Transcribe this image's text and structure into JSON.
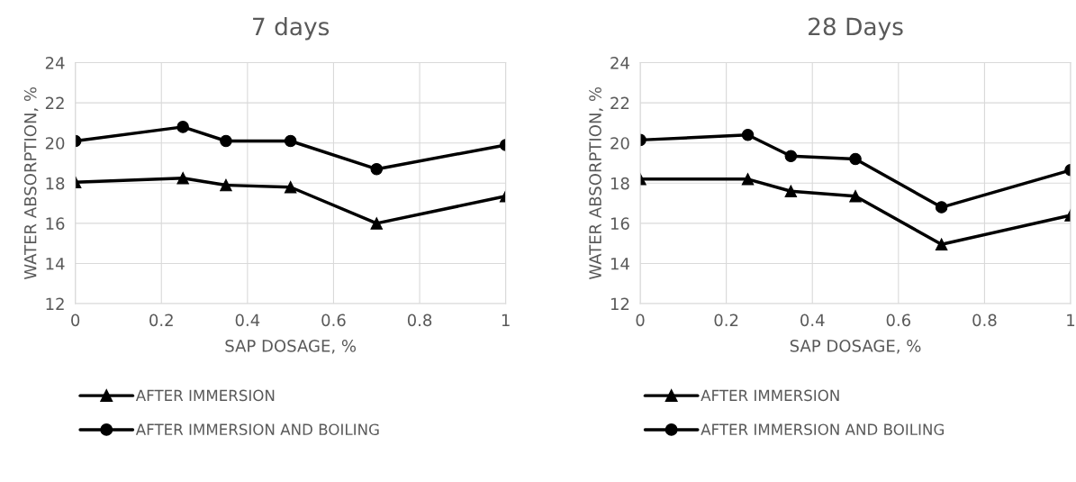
{
  "chart_data": [
    {
      "type": "line",
      "title": "7 days",
      "xlabel": "SAP DOSAGE, %",
      "ylabel": "WATER ABSORPTION, %",
      "x": [
        0,
        0.25,
        0.35,
        0.5,
        0.7,
        1
      ],
      "series": [
        {
          "name": "AFTER IMMERSION",
          "color": "#000000",
          "marker": "triangle",
          "values": [
            18.05,
            18.25,
            17.9,
            17.8,
            16.0,
            17.35
          ]
        },
        {
          "name": "AFTER IMMERSION AND BOILING",
          "color": "#000000",
          "marker": "circle",
          "values": [
            20.1,
            20.8,
            20.1,
            20.1,
            18.7,
            19.9
          ]
        }
      ],
      "xlim": [
        0,
        1
      ],
      "xticks": [
        0,
        0.2,
        0.4,
        0.6,
        0.8,
        1
      ],
      "ylim": [
        12,
        24
      ],
      "yticks": [
        12,
        14,
        16,
        18,
        20,
        22,
        24
      ],
      "grid": true,
      "legend": "bottom"
    },
    {
      "type": "line",
      "title": "28 Days",
      "xlabel": "SAP DOSAGE, %",
      "ylabel": "WATER ABSORPTION, %",
      "x": [
        0,
        0.25,
        0.35,
        0.5,
        0.7,
        1
      ],
      "series": [
        {
          "name": "AFTER IMMERSION",
          "color": "#000000",
          "marker": "triangle",
          "values": [
            18.2,
            18.2,
            17.6,
            17.35,
            14.95,
            16.4
          ]
        },
        {
          "name": "AFTER IMMERSION AND BOILING",
          "color": "#000000",
          "marker": "circle",
          "values": [
            20.15,
            20.4,
            19.35,
            19.2,
            16.8,
            18.65
          ]
        }
      ],
      "xlim": [
        0,
        1
      ],
      "xticks": [
        0,
        0.2,
        0.4,
        0.6,
        0.8,
        1
      ],
      "ylim": [
        12,
        24
      ],
      "yticks": [
        12,
        14,
        16,
        18,
        20,
        22,
        24
      ],
      "grid": true,
      "legend": "bottom"
    }
  ]
}
